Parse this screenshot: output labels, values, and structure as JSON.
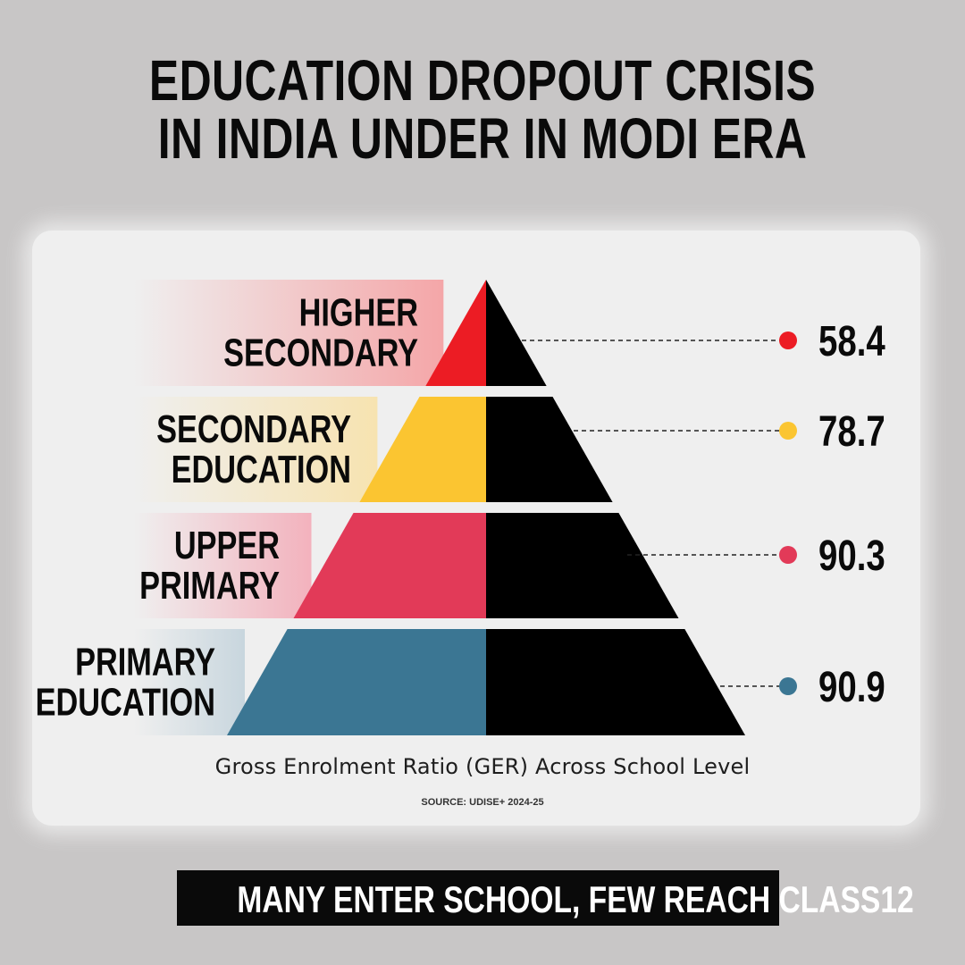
{
  "title": {
    "line1": "EDUCATION DROPOUT CRISIS",
    "line2": "IN INDIA UNDER IN MODI ERA"
  },
  "chart_data": {
    "type": "pyramid",
    "categories": [
      [
        "HIGHER",
        "SECONDARY"
      ],
      [
        "SECONDARY",
        "EDUCATION"
      ],
      [
        "UPPER",
        "PRIMARY"
      ],
      [
        "PRIMARY",
        "EDUCATION"
      ]
    ],
    "values": [
      58.4,
      78.7,
      90.3,
      90.9
    ],
    "value_labels": [
      "58.4",
      "78.7",
      "90.3",
      "90.9"
    ],
    "colors": [
      "#ec1c24",
      "#fbc531",
      "#e23a58",
      "#3b7693"
    ],
    "gradient_colors": [
      "#f4a6a8",
      "#f7e3b0",
      "#f3b2bd",
      "#c8d6de"
    ],
    "xlabel": "Gross Enrolment Ratio (GER) Across School Level",
    "source": "SOURCE: UDISE+ 2024-25"
  },
  "banner": "MANY ENTER SCHOOL, FEW REACH CLASS12"
}
